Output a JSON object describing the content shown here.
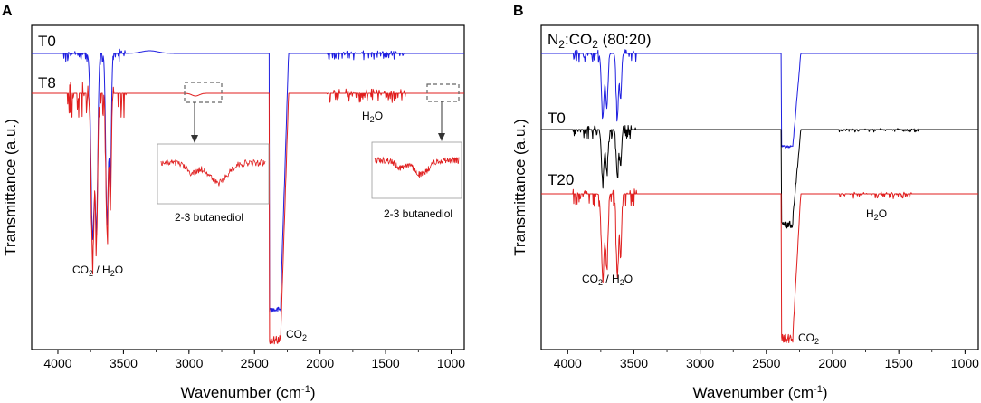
{
  "figure": {
    "xlabel": "Wavenumber (cm",
    "xlabel_sup": "-1",
    "xlabel_end": ")",
    "ylabel": "Transmittance (a.u.)"
  },
  "chart_data": [
    {
      "panel": "A",
      "type": "line",
      "xlabel": "Wavenumber (cm-1)",
      "ylabel": "Transmittance (a.u.)",
      "xlim": [
        4200,
        900
      ],
      "x_reversed": true,
      "xticks": [
        4000,
        3500,
        3000,
        2500,
        2000,
        1500,
        1000
      ],
      "series": [
        {
          "name": "T0",
          "color": "#1f1fe0"
        },
        {
          "name": "T8",
          "color": "#e01f1f"
        }
      ],
      "annotations": [
        {
          "text": "CO",
          "sub": "2",
          "tail": " / H",
          "sub2": "2",
          "tail2": "O"
        },
        {
          "text": "CO",
          "sub": "2"
        },
        {
          "text": "H",
          "sub": "2",
          "tail": "O"
        }
      ],
      "insets": [
        {
          "caption": "2-3 butanediol",
          "source_range": [
            3000,
            2850
          ]
        },
        {
          "caption": "2-3 butanediol",
          "source_range": [
            1150,
            1020
          ]
        }
      ]
    },
    {
      "panel": "B",
      "type": "line",
      "xlabel": "Wavenumber (cm-1)",
      "ylabel": "Transmittance (a.u.)",
      "xlim": [
        4200,
        900
      ],
      "x_reversed": true,
      "xticks": [
        4000,
        3500,
        3000,
        2500,
        2000,
        1500,
        1000
      ],
      "series": [
        {
          "name": "N2:CO2 (80:20)",
          "color": "#1f1fe0"
        },
        {
          "name": "T0",
          "color": "#000000"
        },
        {
          "name": "T20",
          "color": "#e01f1f"
        }
      ],
      "annotations": [
        {
          "text": "CO",
          "sub": "2",
          "tail": " / H",
          "sub2": "2",
          "tail2": "O"
        },
        {
          "text": "CO",
          "sub": "2"
        },
        {
          "text": "H",
          "sub": "2",
          "tail": "O"
        }
      ]
    }
  ],
  "labels": {
    "panelA": "A",
    "panelB": "B",
    "a_t0": "T0",
    "a_t8": "T8",
    "b_n2_pre": "N",
    "b_n2_sub": "2",
    "b_n2_mid": ":CO",
    "b_n2_sub2": "2",
    "b_n2_post": " (80:20)",
    "b_t0": "T0",
    "b_t20": "T20",
    "inset1": "2-3 butanediol",
    "inset2": "2-3 butanediol"
  }
}
